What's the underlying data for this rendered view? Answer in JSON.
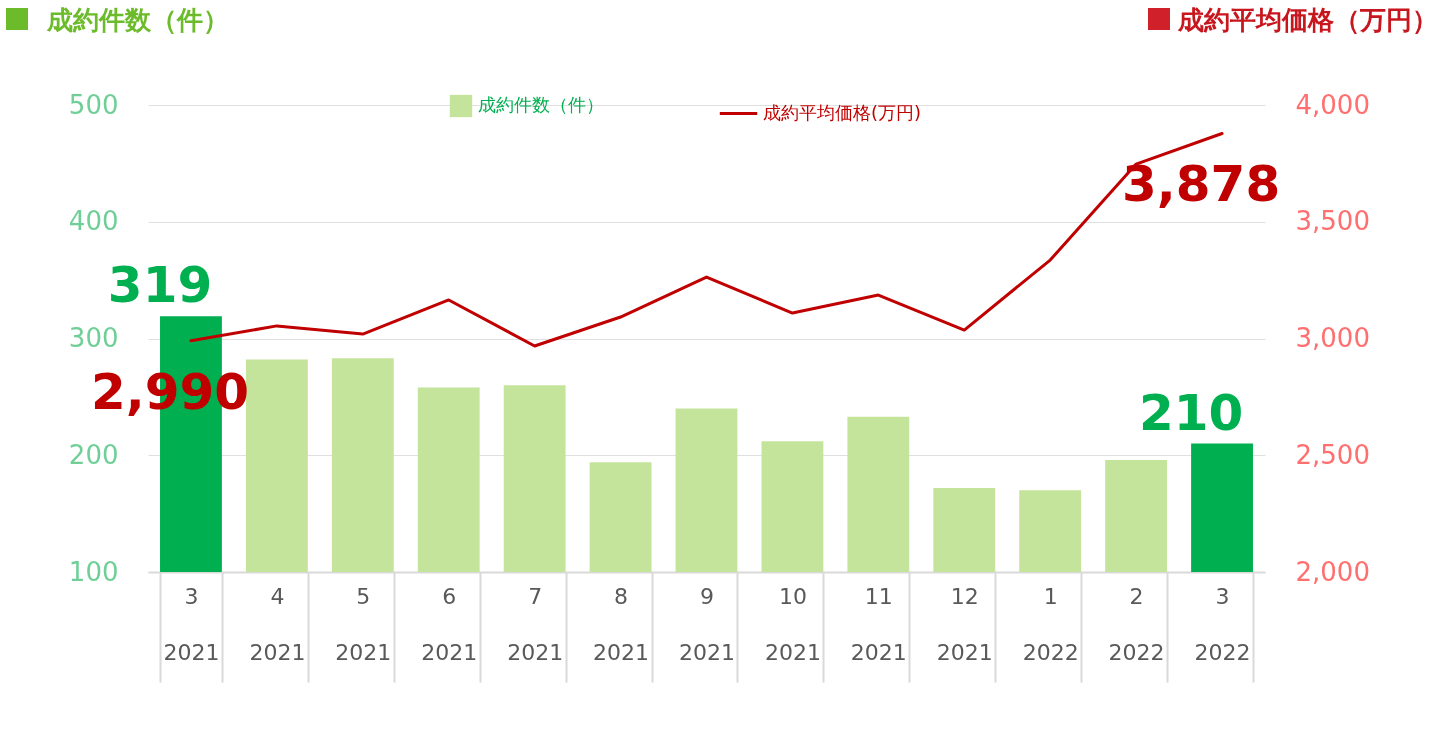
{
  "chart_data": {
    "type": "bar",
    "ylabel": "成約件数（件）",
    "y2label": "成約平均価格（万円）",
    "categories": [
      "3\n2021",
      "4\n2021",
      "5\n2021",
      "6\n2021",
      "7\n2021",
      "8\n2021",
      "9\n2021",
      "10\n2021",
      "11\n2021",
      "12\n2021",
      "1\n2022",
      "2\n2022",
      "3\n2022"
    ],
    "series": [
      {
        "name": "成約件数（件）",
        "color": "#c5e49b",
        "colors": [
          "#00b050",
          "#c5e49b",
          "#c5e49b",
          "#c5e49b",
          "#c5e49b",
          "#c5e49b",
          "#c5e49b",
          "#c5e49b",
          "#c5e49b",
          "#c5e49b",
          "#c5e49b",
          "#c5e49b",
          "#00b050"
        ],
        "values": [
          319,
          282,
          283,
          258,
          260,
          194,
          240,
          212,
          233,
          172,
          170,
          196,
          210
        ],
        "value_labels": [
          "319",
          null,
          null,
          null,
          null,
          null,
          null,
          null,
          null,
          null,
          null,
          null,
          "210"
        ]
      },
      {
        "name": "成約平均価格(万円)",
        "type": "line",
        "axis": "y2",
        "color": "#c00000",
        "values": [
          2990,
          3054,
          3019,
          3165,
          2968,
          3092,
          3263,
          3109,
          3186,
          3036,
          3336,
          3747,
          3878
        ],
        "value_labels": [
          "2,990",
          null,
          null,
          null,
          null,
          null,
          null,
          null,
          null,
          null,
          null,
          null,
          "3,878"
        ]
      }
    ],
    "ylim": [
      100,
      500
    ],
    "yticks": [
      100,
      200,
      300,
      400,
      500
    ],
    "y2lim": [
      2000,
      4000
    ],
    "y2ticks": [
      {
        "value": 2000,
        "label": "2,000"
      },
      {
        "value": 2500,
        "label": "2,500"
      },
      {
        "value": 3000,
        "label": "3,000"
      },
      {
        "value": 3500,
        "label": "3,500"
      },
      {
        "value": 4000,
        "label": "4,000"
      }
    ],
    "grid": "y",
    "legend": "top",
    "marker": "none",
    "line_style": "solid"
  }
}
